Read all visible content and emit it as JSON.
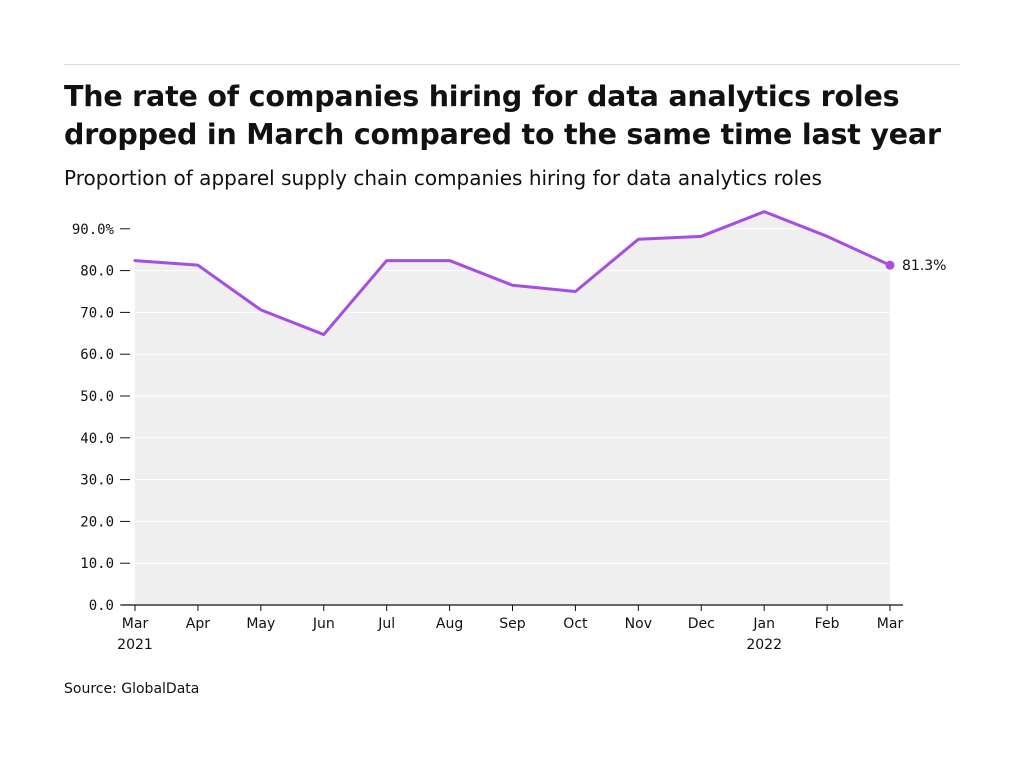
{
  "title": "The rate of companies hiring for data analytics roles dropped in March compared to the same time last year",
  "subtitle": "Proportion of apparel supply chain companies hiring for data analytics roles",
  "source": "Source: GlobalData",
  "colors": {
    "line": "#a64ee0",
    "area": "#efefef",
    "grid": "#ffffff",
    "axis": "#111111",
    "text": "#111111"
  },
  "chart_data": {
    "type": "area",
    "title": "The rate of companies hiring for data analytics roles dropped in March compared to the same time last year",
    "subtitle": "Proportion of apparel supply chain companies hiring for data analytics roles",
    "categories": [
      "Mar 2021",
      "Apr",
      "May",
      "Jun",
      "Jul",
      "Aug",
      "Sep",
      "Oct",
      "Nov",
      "Dec",
      "Jan 2022",
      "Feb",
      "Mar"
    ],
    "x_tick_labels": [
      [
        "Mar",
        "2021"
      ],
      [
        "Apr"
      ],
      [
        "May"
      ],
      [
        "Jun"
      ],
      [
        "Jul"
      ],
      [
        "Aug"
      ],
      [
        "Sep"
      ],
      [
        "Oct"
      ],
      [
        "Nov"
      ],
      [
        "Dec"
      ],
      [
        "Jan",
        "2022"
      ],
      [
        "Feb"
      ],
      [
        "Mar"
      ]
    ],
    "values": [
      82.4,
      81.3,
      70.6,
      64.7,
      82.4,
      82.4,
      76.5,
      75.0,
      87.5,
      88.2,
      94.1,
      88.2,
      81.3
    ],
    "y_ticks": [
      0,
      10,
      20,
      30,
      40,
      50,
      60,
      70,
      80,
      90
    ],
    "y_tick_labels": [
      "0.0",
      "10.0",
      "20.0",
      "30.0",
      "40.0",
      "50.0",
      "60.0",
      "70.0",
      "80.0",
      "90.0%"
    ],
    "ylim": [
      0,
      90
    ],
    "end_label": "81.3%",
    "xlabel": "",
    "ylabel": "",
    "grid": true,
    "legend": "none"
  }
}
